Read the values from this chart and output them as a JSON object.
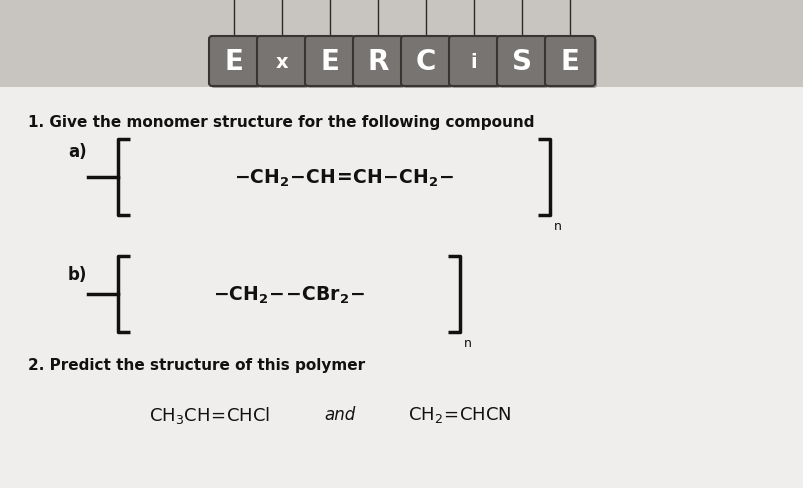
{
  "bg_color": "#c8c4c0",
  "card_color": "#f0eeec",
  "title_letters": [
    "E",
    "x",
    "E",
    "R",
    "C",
    "i",
    "S",
    "E"
  ],
  "tile_color": "#787472",
  "tile_edge_color": "#3a3535",
  "string_color": "#2a2a2a",
  "q1_text": "1. Give the monomer structure for the following compound",
  "q2_text": "2. Predict the structure of this polymer",
  "font_color": "#111111",
  "figw": 8.04,
  "figh": 4.89,
  "dpi": 100
}
